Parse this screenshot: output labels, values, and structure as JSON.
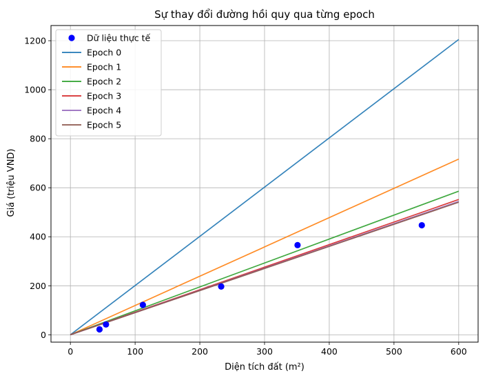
{
  "chart_data": {
    "type": "line",
    "title": "Sự thay đổi đường hồi quy qua từng epoch",
    "xlabel": "Diện tích đất (m²)",
    "ylabel": "Giá (triệu VND)",
    "xlim": [
      -30,
      630
    ],
    "ylim": [
      -30,
      1262
    ],
    "xticks": [
      0,
      100,
      200,
      300,
      400,
      500,
      600
    ],
    "yticks": [
      0,
      200,
      400,
      600,
      800,
      1000,
      1200
    ],
    "grid": true,
    "legend_position": "top-left",
    "scatter": {
      "name": "Dữ liệu thực tế",
      "color": "#0000ff",
      "points": [
        {
          "x": 45,
          "y": 22
        },
        {
          "x": 55,
          "y": 42
        },
        {
          "x": 112,
          "y": 122
        },
        {
          "x": 233,
          "y": 197
        },
        {
          "x": 351,
          "y": 366
        },
        {
          "x": 543,
          "y": 447
        }
      ]
    },
    "series": [
      {
        "name": "Epoch 0",
        "color": "#1f77b4",
        "x": [
          0,
          600
        ],
        "y": [
          0,
          1205
        ]
      },
      {
        "name": "Epoch 1",
        "color": "#ff7f0e",
        "x": [
          0,
          600
        ],
        "y": [
          0,
          717
        ]
      },
      {
        "name": "Epoch 2",
        "color": "#2ca02c",
        "x": [
          0,
          600
        ],
        "y": [
          0,
          586
        ]
      },
      {
        "name": "Epoch 3",
        "color": "#d62728",
        "x": [
          0,
          600
        ],
        "y": [
          0,
          552
        ]
      },
      {
        "name": "Epoch 4",
        "color": "#9467bd",
        "x": [
          0,
          600
        ],
        "y": [
          0,
          544
        ]
      },
      {
        "name": "Epoch 5",
        "color": "#8c564b",
        "x": [
          0,
          600
        ],
        "y": [
          0,
          541
        ]
      }
    ]
  }
}
